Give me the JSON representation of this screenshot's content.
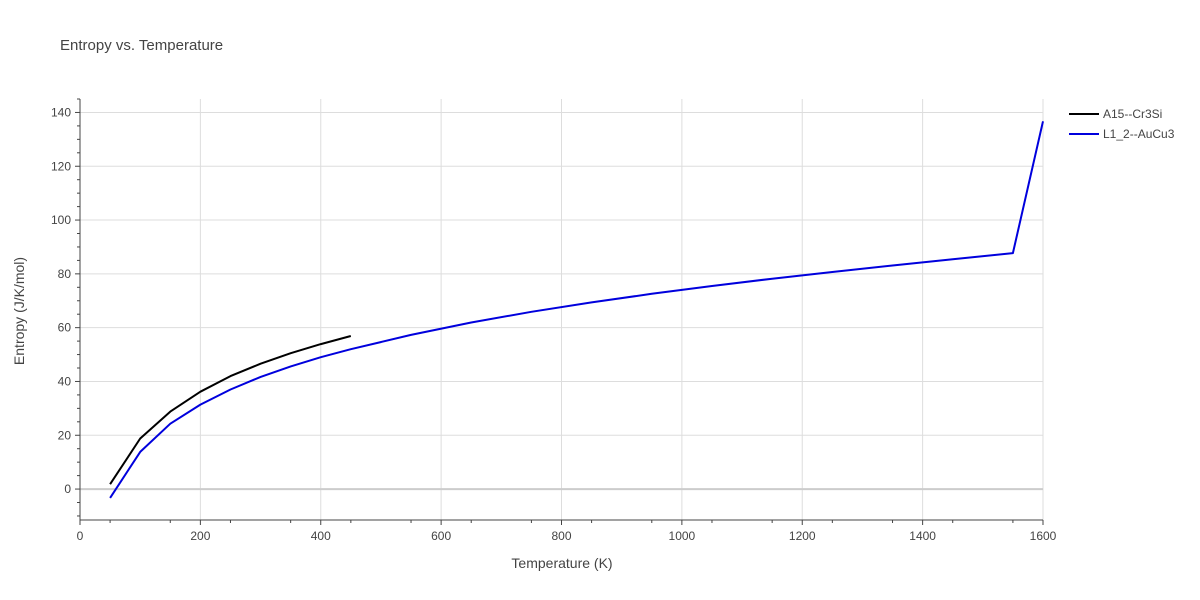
{
  "chart_data": {
    "type": "line",
    "title": "Entropy vs. Temperature",
    "xlabel": "Temperature (K)",
    "ylabel": "Entropy (J/K/mol)",
    "xlim": [
      0,
      1600
    ],
    "ylim": [
      -11.5,
      145
    ],
    "xticks": [
      0,
      200,
      400,
      600,
      800,
      1000,
      1200,
      1400,
      1600
    ],
    "yticks": [
      0,
      20,
      40,
      60,
      80,
      100,
      120,
      140
    ],
    "grid": true,
    "legend_position": "top-right",
    "series": [
      {
        "name": "A15--Cr3Si",
        "color": "#000000",
        "x": [
          50,
          100,
          150,
          200,
          250,
          300,
          350,
          400,
          450
        ],
        "y": [
          1.8,
          18.8,
          28.8,
          36.2,
          42.0,
          46.6,
          50.5,
          53.9,
          56.9
        ]
      },
      {
        "name": "L1_2--AuCu3",
        "color": "#0000dd",
        "x": [
          50,
          100,
          150,
          200,
          250,
          300,
          350,
          400,
          450,
          550,
          650,
          750,
          850,
          950,
          1050,
          1150,
          1250,
          1350,
          1450,
          1550,
          1600
        ],
        "y": [
          -3.3,
          13.8,
          24.3,
          31.4,
          37.0,
          41.7,
          45.6,
          49.0,
          52.0,
          57.3,
          61.9,
          65.9,
          69.4,
          72.6,
          75.5,
          78.2,
          80.7,
          83.1,
          85.4,
          87.7,
          136.7
        ]
      }
    ]
  }
}
